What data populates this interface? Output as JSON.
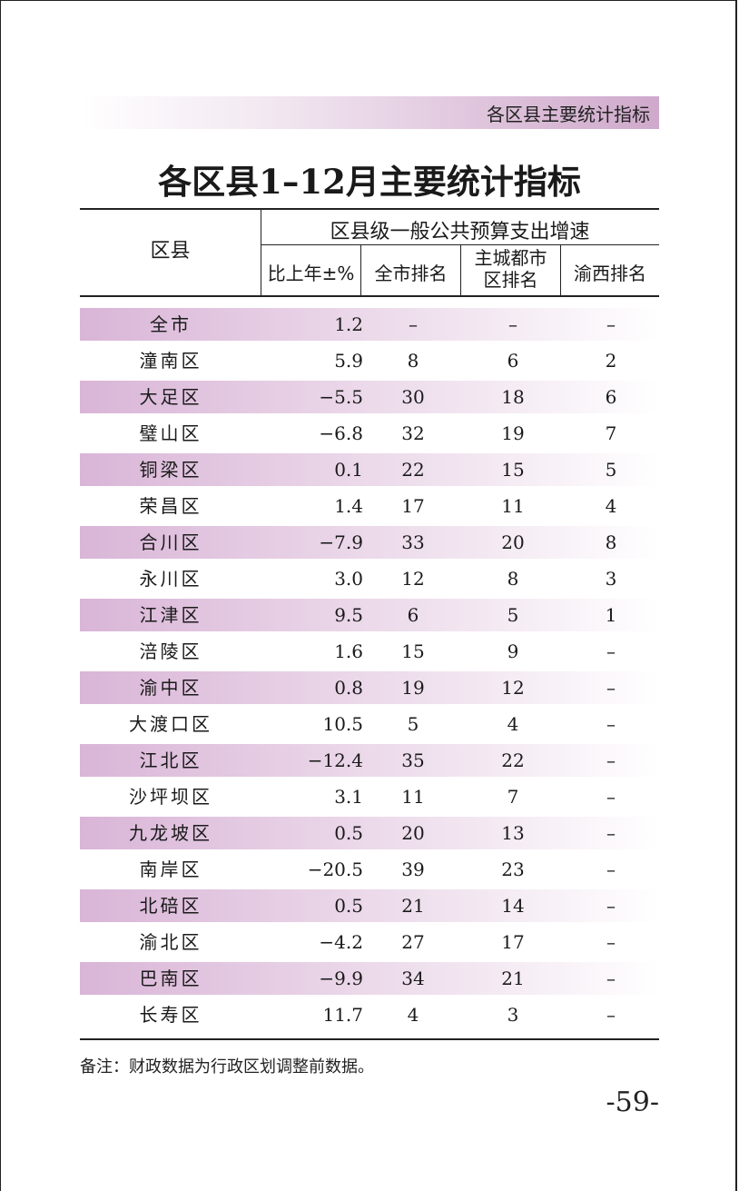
{
  "section_banner": "各区县主要统计指标",
  "title": "各区县1–12月主要统计指标",
  "header": {
    "district": "区县",
    "group": "区县级一般公共预算支出增速",
    "col_pct": "比上年±%",
    "col_all": "全市排名",
    "col_main_line1": "主城都市",
    "col_main_line2": "区排名",
    "col_west": "渝西排名"
  },
  "rows": [
    {
      "name": "全市",
      "pct": "1.2",
      "all": "–",
      "main": "–",
      "west": "–"
    },
    {
      "name": "潼南区",
      "pct": "5.9",
      "all": "8",
      "main": "6",
      "west": "2"
    },
    {
      "name": "大足区",
      "pct": "−5.5",
      "all": "30",
      "main": "18",
      "west": "6"
    },
    {
      "name": "璧山区",
      "pct": "−6.8",
      "all": "32",
      "main": "19",
      "west": "7"
    },
    {
      "name": "铜梁区",
      "pct": "0.1",
      "all": "22",
      "main": "15",
      "west": "5"
    },
    {
      "name": "荣昌区",
      "pct": "1.4",
      "all": "17",
      "main": "11",
      "west": "4"
    },
    {
      "name": "合川区",
      "pct": "−7.9",
      "all": "33",
      "main": "20",
      "west": "8"
    },
    {
      "name": "永川区",
      "pct": "3.0",
      "all": "12",
      "main": "8",
      "west": "3"
    },
    {
      "name": "江津区",
      "pct": "9.5",
      "all": "6",
      "main": "5",
      "west": "1"
    },
    {
      "name": "涪陵区",
      "pct": "1.6",
      "all": "15",
      "main": "9",
      "west": "–"
    },
    {
      "name": "渝中区",
      "pct": "0.8",
      "all": "19",
      "main": "12",
      "west": "–"
    },
    {
      "name": "大渡口区",
      "pct": "10.5",
      "all": "5",
      "main": "4",
      "west": "–"
    },
    {
      "name": "江北区",
      "pct": "−12.4",
      "all": "35",
      "main": "22",
      "west": "–"
    },
    {
      "name": "沙坪坝区",
      "pct": "3.1",
      "all": "11",
      "main": "7",
      "west": "–"
    },
    {
      "name": "九龙坡区",
      "pct": "0.5",
      "all": "20",
      "main": "13",
      "west": "–"
    },
    {
      "name": "南岸区",
      "pct": "−20.5",
      "all": "39",
      "main": "23",
      "west": "–"
    },
    {
      "name": "北碚区",
      "pct": "0.5",
      "all": "21",
      "main": "14",
      "west": "–"
    },
    {
      "name": "渝北区",
      "pct": "−4.2",
      "all": "27",
      "main": "17",
      "west": "–"
    },
    {
      "name": "巴南区",
      "pct": "−9.9",
      "all": "34",
      "main": "21",
      "west": "–"
    },
    {
      "name": "长寿区",
      "pct": "11.7",
      "all": "4",
      "main": "3",
      "west": "–"
    }
  ],
  "note": "备注：财政数据为行政区划调整前数据。",
  "page_number": "-59-",
  "colors": {
    "band_dark": "#d9b5d7",
    "band_light": "#f5ecf4",
    "banner": "#cfa9cb"
  }
}
